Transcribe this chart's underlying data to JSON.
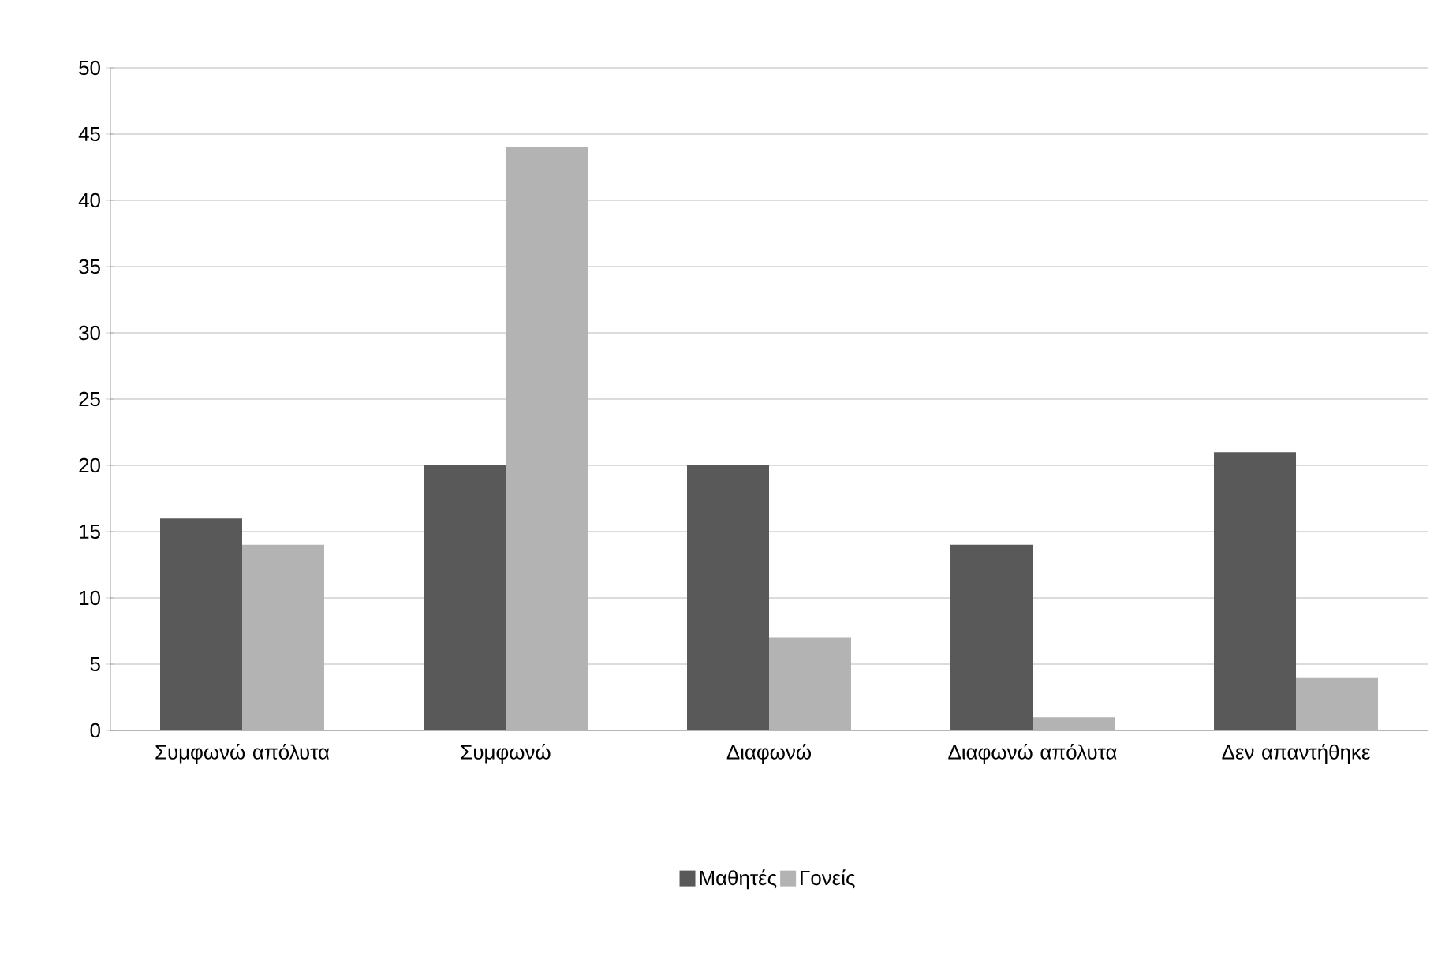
{
  "chart_data": {
    "type": "bar",
    "categories": [
      "Συμφωνώ απόλυτα",
      "Συμφωνώ",
      "Διαφωνώ",
      "Διαφωνώ απόλυτα",
      "Δεν απαντήθηκε"
    ],
    "series": [
      {
        "name": "Μαθητές",
        "color": "#595959",
        "values": [
          16,
          20,
          20,
          14,
          21
        ]
      },
      {
        "name": "Γονείς",
        "color": "#b3b3b3",
        "values": [
          14,
          44,
          7,
          1,
          4
        ]
      }
    ],
    "ylim": [
      0,
      50
    ],
    "yticks": [
      0,
      5,
      10,
      15,
      20,
      25,
      30,
      35,
      40,
      45,
      50
    ],
    "grid": "y",
    "legend": "bottom"
  }
}
